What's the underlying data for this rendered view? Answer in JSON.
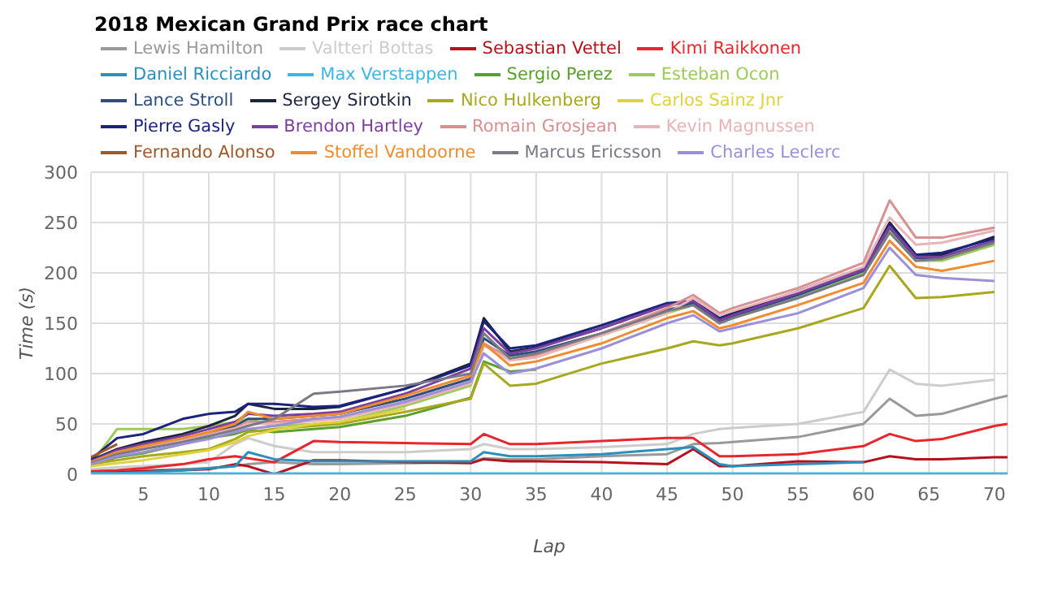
{
  "chart_data": {
    "type": "line",
    "title": "2018 Mexican Grand Prix race chart",
    "xlabel": "Lap",
    "ylabel": "Time (s)",
    "x": [
      1,
      3,
      5,
      8,
      10,
      12,
      13,
      15,
      18,
      20,
      25,
      30,
      31,
      33,
      35,
      40,
      45,
      47,
      49,
      50,
      55,
      60,
      62,
      64,
      66,
      70,
      71
    ],
    "xlim": [
      1,
      71
    ],
    "xticks": [
      5,
      10,
      15,
      20,
      25,
      30,
      35,
      40,
      45,
      50,
      55,
      60,
      65,
      70
    ],
    "ylim": [
      0,
      300
    ],
    "yticks": [
      0,
      50,
      100,
      150,
      200,
      250,
      300
    ],
    "grid": true,
    "legend": "top",
    "marker": "none",
    "line_style": "solid",
    "series": [
      {
        "name": "Lewis Hamilton",
        "color": "#999999",
        "values": [
          3,
          3,
          4,
          5,
          6,
          8,
          10,
          12,
          10,
          10,
          11,
          12,
          16,
          15,
          15,
          18,
          20,
          30,
          31,
          32,
          37,
          50,
          75,
          58,
          60,
          75,
          78
        ]
      },
      {
        "name": "Valtteri Bottas",
        "color": "#cccccc",
        "values": [
          5,
          7,
          8,
          10,
          12,
          30,
          36,
          28,
          22,
          22,
          22,
          25,
          30,
          25,
          25,
          27,
          30,
          40,
          45,
          46,
          50,
          62,
          104,
          90,
          88,
          94,
          null
        ]
      },
      {
        "name": "Sebastian Vettel",
        "color": "#b5121b",
        "values": [
          2,
          2,
          3,
          4,
          5,
          10,
          8,
          0,
          14,
          14,
          12,
          11,
          15,
          13,
          13,
          12,
          10,
          25,
          8,
          8,
          13,
          12,
          18,
          15,
          15,
          17,
          17
        ]
      },
      {
        "name": "Kimi Raikkonen",
        "color": "#e8262b",
        "values": [
          3,
          4,
          6,
          10,
          15,
          18,
          16,
          12,
          33,
          32,
          31,
          30,
          40,
          30,
          30,
          33,
          36,
          36,
          18,
          18,
          20,
          28,
          40,
          33,
          35,
          48,
          50
        ]
      },
      {
        "name": "Daniel Ricciardo",
        "color": "#2a8fbd",
        "values": [
          1,
          1,
          2,
          4,
          6,
          8,
          22,
          15,
          13,
          13,
          13,
          13,
          22,
          18,
          18,
          20,
          25,
          27,
          10,
          8,
          10,
          12,
          null,
          null,
          null,
          null,
          null
        ]
      },
      {
        "name": "Max Verstappen",
        "color": "#3cb6e3",
        "values": [
          0,
          0,
          0,
          0,
          0,
          0,
          0,
          0,
          0,
          0,
          0,
          0,
          0,
          0,
          0,
          0,
          0,
          0,
          0,
          0,
          0,
          0,
          0,
          0,
          0,
          0,
          0
        ]
      },
      {
        "name": "Sergio Perez",
        "color": "#5aa02c",
        "values": [
          9,
          17,
          21,
          30,
          36,
          40,
          44,
          42,
          45,
          47,
          58,
          76,
          112,
          102,
          104,
          null,
          null,
          null,
          null,
          null,
          null,
          null,
          null,
          null,
          null,
          null,
          null
        ]
      },
      {
        "name": "Esteban Ocon",
        "color": "#9ccb5a",
        "values": [
          10,
          45,
          45,
          45,
          48,
          52,
          55,
          48,
          50,
          52,
          68,
          88,
          128,
          118,
          120,
          138,
          160,
          168,
          150,
          155,
          175,
          200,
          242,
          212,
          212,
          228,
          null
        ]
      },
      {
        "name": "Lance Stroll",
        "color": "#2f4f7f",
        "values": [
          12,
          22,
          28,
          35,
          40,
          48,
          55,
          55,
          58,
          60,
          75,
          95,
          135,
          118,
          122,
          140,
          163,
          170,
          152,
          157,
          178,
          202,
          245,
          215,
          215,
          232,
          null
        ]
      },
      {
        "name": "Sergey Sirotkin",
        "color": "#1c2540",
        "values": [
          14,
          25,
          32,
          40,
          48,
          58,
          70,
          65,
          65,
          67,
          85,
          110,
          155,
          122,
          126,
          145,
          168,
          172,
          155,
          160,
          182,
          205,
          250,
          218,
          218,
          236,
          null
        ]
      },
      {
        "name": "Nico Hulkenberg",
        "color": "#a8a820",
        "values": [
          10,
          14,
          18,
          22,
          25,
          35,
          42,
          45,
          48,
          50,
          62,
          75,
          110,
          88,
          90,
          110,
          125,
          132,
          128,
          130,
          145,
          165,
          207,
          175,
          176,
          181,
          null
        ]
      },
      {
        "name": "Carlos Sainz Jnr",
        "color": "#e0d23a",
        "values": [
          8,
          11,
          14,
          20,
          24,
          32,
          38,
          44,
          50,
          52,
          65,
          null,
          null,
          null,
          null,
          null,
          null,
          null,
          null,
          null,
          null,
          null,
          null,
          null,
          null,
          null,
          null
        ]
      },
      {
        "name": "Pierre Gasly",
        "color": "#1a237e",
        "values": [
          15,
          36,
          40,
          55,
          60,
          62,
          70,
          70,
          67,
          68,
          85,
          108,
          152,
          125,
          128,
          148,
          170,
          172,
          155,
          158,
          182,
          205,
          248,
          218,
          220,
          234,
          null
        ]
      },
      {
        "name": "Brendon Hartley",
        "color": "#7b3fa0",
        "values": [
          13,
          24,
          30,
          38,
          45,
          52,
          60,
          58,
          60,
          62,
          80,
          105,
          145,
          120,
          125,
          145,
          168,
          172,
          153,
          158,
          180,
          203,
          246,
          216,
          216,
          232,
          null
        ]
      },
      {
        "name": "Romain Grosjean",
        "color": "#d99090",
        "values": [
          12,
          22,
          27,
          34,
          40,
          46,
          52,
          52,
          55,
          57,
          72,
          92,
          130,
          115,
          118,
          140,
          165,
          178,
          160,
          165,
          185,
          210,
          272,
          235,
          235,
          245,
          null
        ]
      },
      {
        "name": "Kevin Magnussen",
        "color": "#e8b4b8",
        "values": [
          11,
          21,
          26,
          33,
          39,
          45,
          50,
          50,
          53,
          55,
          70,
          90,
          128,
          113,
          116,
          138,
          160,
          175,
          158,
          162,
          182,
          206,
          255,
          228,
          230,
          242,
          null
        ]
      },
      {
        "name": "Fernando Alonso",
        "color": "#a0582a",
        "values": [
          17,
          30,
          null,
          null,
          null,
          null,
          null,
          null,
          null,
          null,
          null,
          null,
          null,
          null,
          null,
          null,
          null,
          null,
          null,
          null,
          null,
          null,
          null,
          null,
          null,
          null,
          null
        ]
      },
      {
        "name": "Stoffel Vandoorne",
        "color": "#f08c30",
        "values": [
          12,
          22,
          28,
          36,
          42,
          50,
          62,
          55,
          58,
          60,
          78,
          98,
          130,
          108,
          112,
          130,
          155,
          162,
          145,
          148,
          168,
          190,
          232,
          206,
          202,
          212,
          null
        ]
      },
      {
        "name": "Marcus Ericsson",
        "color": "#7a7a85",
        "values": [
          11,
          20,
          25,
          32,
          38,
          44,
          48,
          55,
          80,
          82,
          88,
          100,
          140,
          115,
          120,
          140,
          162,
          168,
          150,
          155,
          175,
          198,
          240,
          212,
          214,
          230,
          null
        ]
      },
      {
        "name": "Charles Leclerc",
        "color": "#9a8fd8",
        "values": [
          10,
          18,
          22,
          30,
          35,
          42,
          45,
          48,
          55,
          57,
          72,
          92,
          120,
          100,
          105,
          125,
          150,
          158,
          142,
          145,
          160,
          185,
          225,
          198,
          195,
          192,
          null
        ]
      }
    ]
  }
}
